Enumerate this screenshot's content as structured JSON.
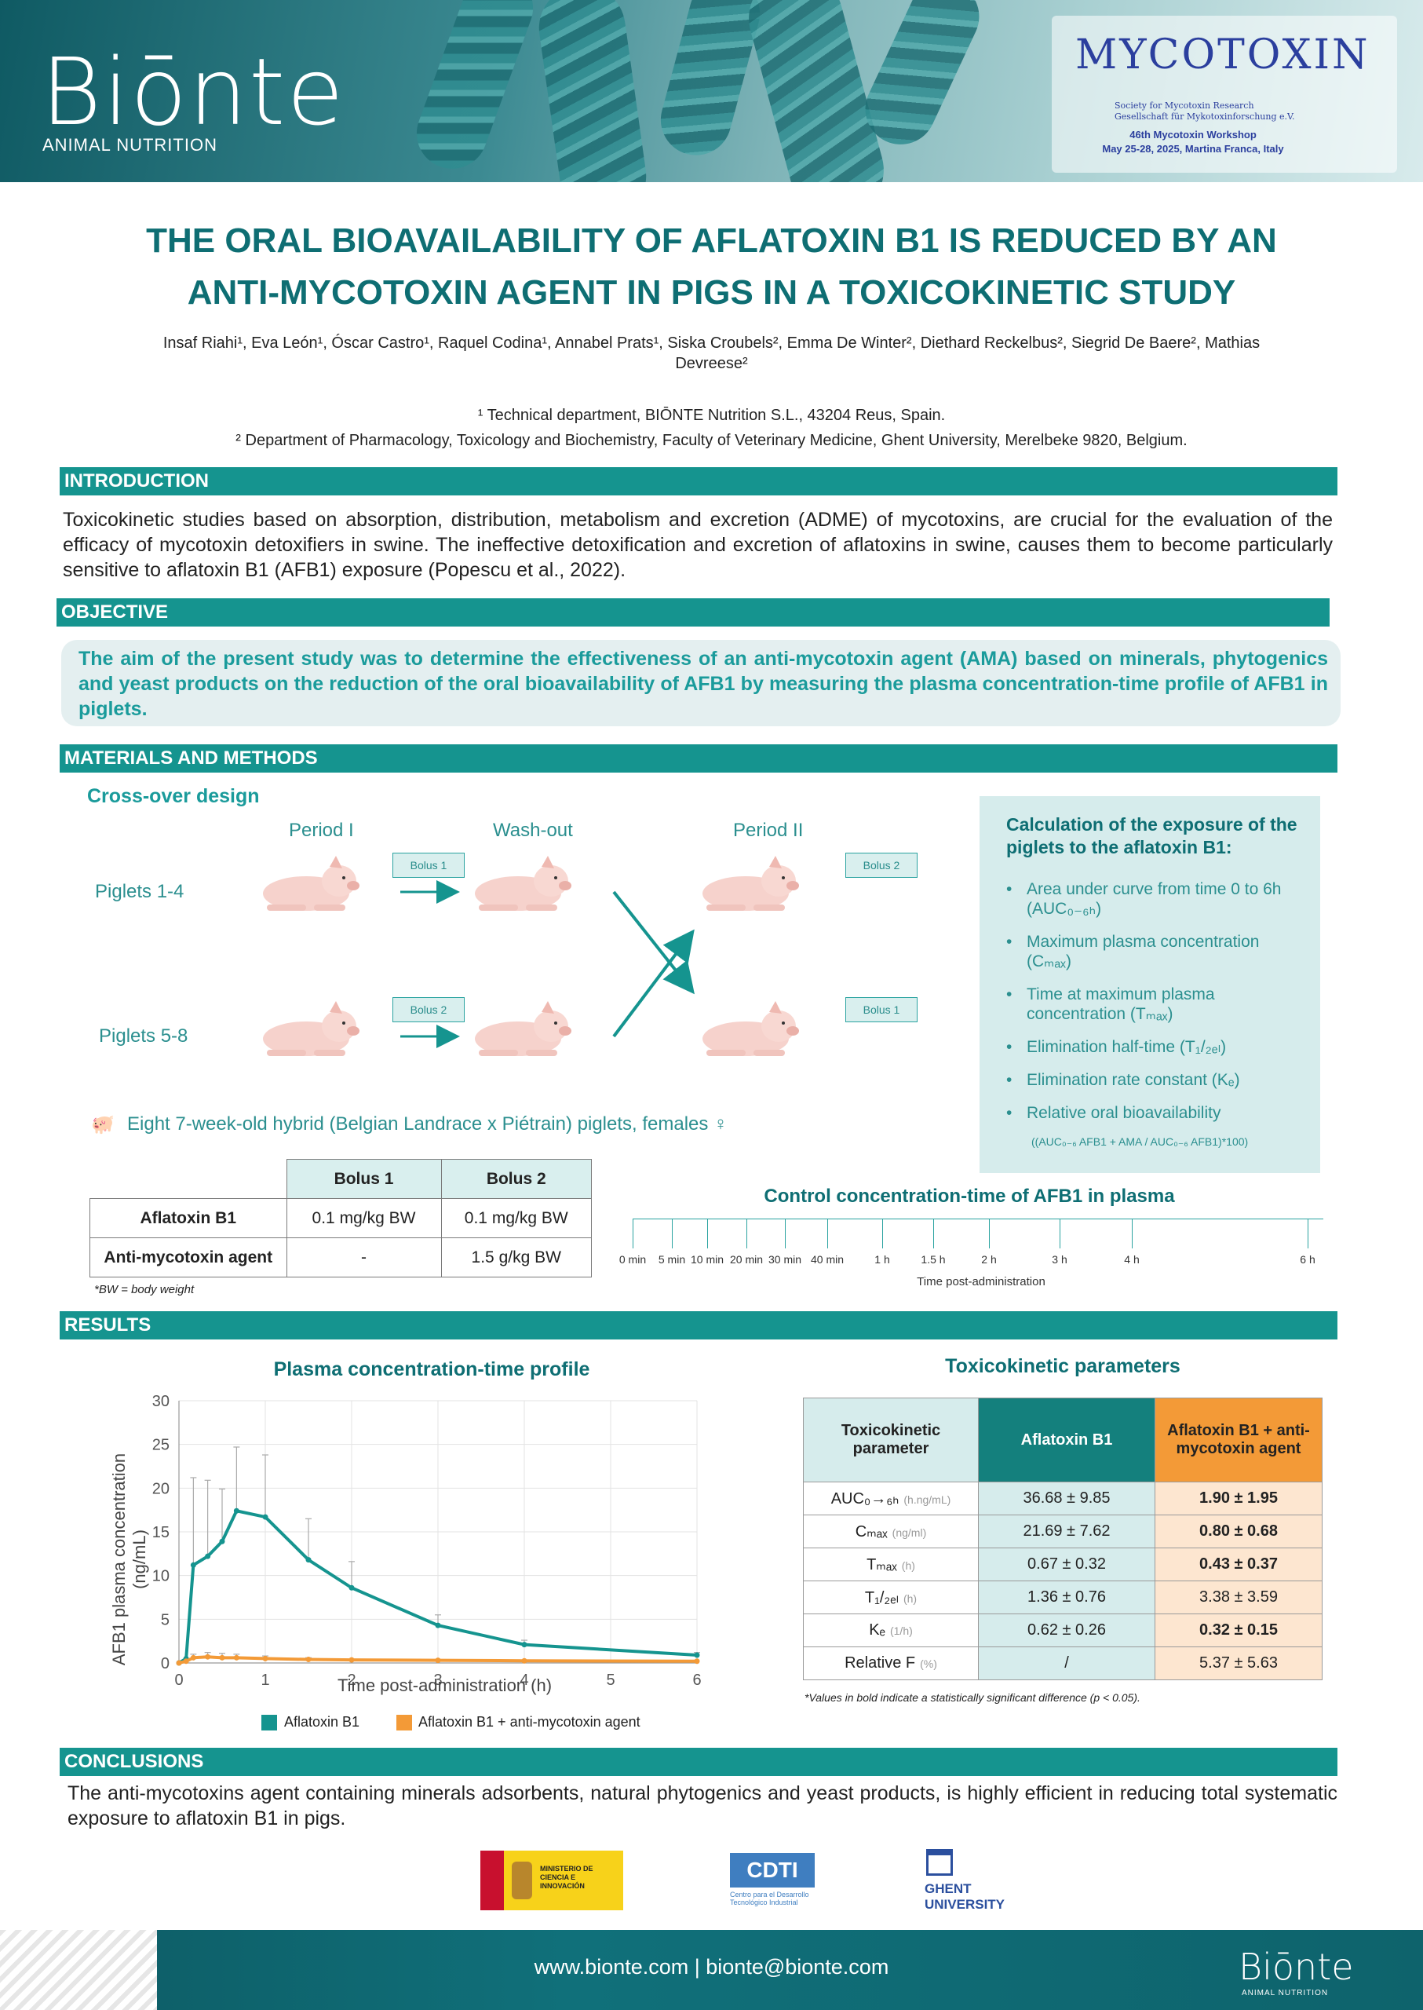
{
  "header": {
    "logo": "Biōnte",
    "logo_sub": "ANIMAL NUTRITION",
    "myco_logo": "MYCOTOXIN",
    "myco_line1": "Society for Mycotoxin Research",
    "myco_line2": "Gesellschaft für Mykotoxinforschung e.V.",
    "workshop": "46th Mycotoxin Workshop",
    "workshop_dates": "May 25-28, 2025, Martina Franca, Italy"
  },
  "title": {
    "line1": "THE ORAL BIOAVAILABILITY OF AFLATOXIN B1 IS REDUCED BY AN",
    "line2": "ANTI-MYCOTOXIN AGENT IN PIGS IN A TOXICOKINETIC STUDY"
  },
  "authors": {
    "line1": "Insaf Riahi¹, Eva León¹, Óscar Castro¹, Raquel Codina¹, Annabel Prats¹, Siska Croubels², Emma De Winter², Diethard Reckelbus², Siegrid De Baere², Mathias",
    "line2": "Devreese²"
  },
  "affiliations": {
    "a1": "¹ Technical department, BIŌNTE Nutrition S.L., 43204 Reus, Spain.",
    "a2": "² Department of Pharmacology, Toxicology and Biochemistry, Faculty of Veterinary Medicine, Ghent University, Merelbeke 9820, Belgium."
  },
  "sections": {
    "introduction": "INTRODUCTION",
    "objective": "OBJECTIVE",
    "methods": "MATERIALS AND METHODS",
    "results": "RESULTS",
    "conclusions": "CONCLUSIONS"
  },
  "introduction_text": "Toxicokinetic studies based on absorption, distribution, metabolism and excretion (ADME) of mycotoxins, are crucial for the evaluation of the efficacy of mycotoxin detoxifiers in swine. The ineffective detoxification and excretion of aflatoxins in swine, causes them to become particularly sensitive to aflatoxin B1 (AFB1) exposure (Popescu et al., 2022).",
  "objective_text": "The aim of the present study was to determine the effectiveness of an anti-mycotoxin agent (AMA) based on minerals, phytogenics and yeast products on the reduction of the oral bioavailability of AFB1 by measuring the plasma concentration-time profile of AFB1 in piglets.",
  "design": {
    "heading": "Cross-over design",
    "period1": "Period I",
    "washout": "Wash-out",
    "period2": "Period II",
    "piglets_a": "Piglets 1-4",
    "piglets_b": "Piglets 5-8",
    "bolus1": "Bolus 1",
    "bolus2": "Bolus 2",
    "animals": "Eight 7-week-old hybrid (Belgian Landrace x Piétrain) piglets, females ♀"
  },
  "calc": {
    "title": "Calculation of the exposure of the piglets to the aflatoxin B1:",
    "items": [
      "Area under curve from time 0 to 6h (AUC₀₋₆ₕ)",
      "Maximum plasma concentration (Cₘₐₓ)",
      "Time at maximum plasma concentration (Tₘₐₓ)",
      "Elimination half-time (T₁/₂ₑₗ)",
      "Elimination rate constant (Kₑ)",
      "Relative oral bioavailability"
    ],
    "formula": "((AUC₀₋₆ AFB1 + AMA / AUC₀₋₆ AFB1)*100)"
  },
  "dose_table": {
    "headers": [
      "",
      "Bolus 1",
      "Bolus 2"
    ],
    "rows": [
      [
        "Aflatoxin B1",
        "0.1 mg/kg BW",
        "0.1 mg/kg BW"
      ],
      [
        "Anti-mycotoxin agent",
        "-",
        "1.5 g/kg BW"
      ]
    ],
    "note": "*BW = body weight"
  },
  "timeline": {
    "title": "Control concentration-time of AFB1 in plasma",
    "points": [
      "0 min",
      "5 min",
      "10 min",
      "20 min",
      "30 min",
      "40 min",
      "1 h",
      "1.5 h",
      "2 h",
      "3 h",
      "4 h",
      "6 h"
    ],
    "axis_label": "Time post-administration"
  },
  "chart_data": {
    "type": "line",
    "title": "Plasma concentration-time profile",
    "xlabel": "Time post-administration (h)",
    "ylabel": "AFB1 plasma concentration (ng/mL)",
    "xlim": [
      0,
      6
    ],
    "ylim": [
      0,
      30
    ],
    "xticks": [
      0,
      1,
      2,
      3,
      4,
      5,
      6
    ],
    "yticks": [
      0,
      5,
      10,
      15,
      20,
      25,
      30
    ],
    "x": [
      0,
      0.083,
      0.167,
      0.333,
      0.5,
      0.667,
      1,
      1.5,
      2,
      3,
      4,
      6
    ],
    "series": [
      {
        "name": "Aflatoxin B1",
        "color": "#15948f",
        "values": [
          0,
          0.5,
          11.2,
          12.2,
          13.9,
          17.4,
          16.7,
          11.8,
          8.6,
          4.3,
          2.1,
          0.9
        ],
        "errors": [
          0,
          0,
          10,
          8.7,
          6,
          7.3,
          7.1,
          4.7,
          3,
          1.2,
          0.5,
          0.3
        ]
      },
      {
        "name": "Aflatoxin B1 + anti-mycotoxin agent",
        "color": "#f39a37",
        "values": [
          0,
          0.2,
          0.6,
          0.7,
          0.6,
          0.6,
          0.5,
          0.4,
          0.35,
          0.3,
          0.25,
          0.2
        ],
        "errors": [
          0,
          0,
          0.4,
          0.5,
          0.5,
          0.4,
          0.3,
          0.2,
          0,
          0,
          0,
          0
        ]
      }
    ],
    "grid": true,
    "legend": "bottom"
  },
  "tk_table": {
    "title": "Toxicokinetic parameters",
    "headers": [
      "Toxicokinetic parameter",
      "Aflatoxin B1",
      "Aflatoxin B1 + anti-mycotoxin agent"
    ],
    "rows": [
      {
        "param": "AUC₀→₆ₕ",
        "unit": "(h.ng/mL)",
        "afb1": "36.68 ± 9.85",
        "ama": "1.90 ± 1.95",
        "bold": true
      },
      {
        "param": "Cₘₐₓ",
        "unit": "(ng/ml)",
        "afb1": "21.69 ± 7.62",
        "ama": "0.80 ± 0.68",
        "bold": true
      },
      {
        "param": "Tₘₐₓ",
        "unit": "(h)",
        "afb1": "0.67 ± 0.32",
        "ama": "0.43 ± 0.37",
        "bold": true
      },
      {
        "param": "T₁/₂ₑₗ",
        "unit": "(h)",
        "afb1": "1.36 ± 0.76",
        "ama": "3.38 ± 3.59",
        "bold": false
      },
      {
        "param": "Kₑ",
        "unit": "(1/h)",
        "afb1": "0.62 ± 0.26",
        "ama": "0.32 ± 0.15",
        "bold": true
      },
      {
        "param": "Relative F",
        "unit": "(%)",
        "afb1": "/",
        "ama": "5.37 ± 5.63",
        "bold": false
      }
    ],
    "note": "*Values in bold indicate a statistically significant difference (p < 0.05)."
  },
  "conclusion_text": "The anti-mycotoxins agent containing minerals adsorbents, natural phytogenics and yeast products, is highly efficient in reducing total systematic exposure to aflatoxin B1 in pigs.",
  "sponsors": {
    "ministry": "MINISTERIO DE CIENCIA E INNOVACIÓN",
    "cdti": "CDTI",
    "cdti_sub": "Centro para el Desarrollo Tecnológico Industrial",
    "ghent": "GHENT UNIVERSITY"
  },
  "footer": {
    "contact": "www.bionte.com | bionte@bionte.com",
    "logo": "Biōnte",
    "logo_sub": "ANIMAL NUTRITION"
  }
}
